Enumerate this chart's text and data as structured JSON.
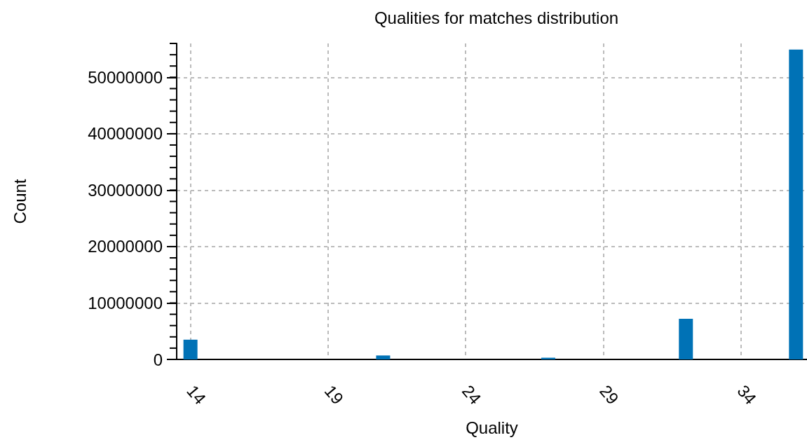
{
  "chart_data": {
    "type": "bar",
    "title": "Qualities for matches distribution",
    "xlabel": "Quality",
    "ylabel": "Count",
    "x": [
      14,
      21,
      27,
      32,
      36
    ],
    "values": [
      3500000,
      700000,
      300000,
      7200000,
      54900000
    ],
    "color": "#0072b6",
    "xlim": [
      13.5,
      36.4
    ],
    "xticks": [
      14,
      19,
      24,
      29,
      34
    ],
    "ylim": [
      0,
      56000000
    ],
    "yticks": [
      0,
      10000000,
      20000000,
      30000000,
      40000000,
      50000000
    ],
    "grid": true
  }
}
